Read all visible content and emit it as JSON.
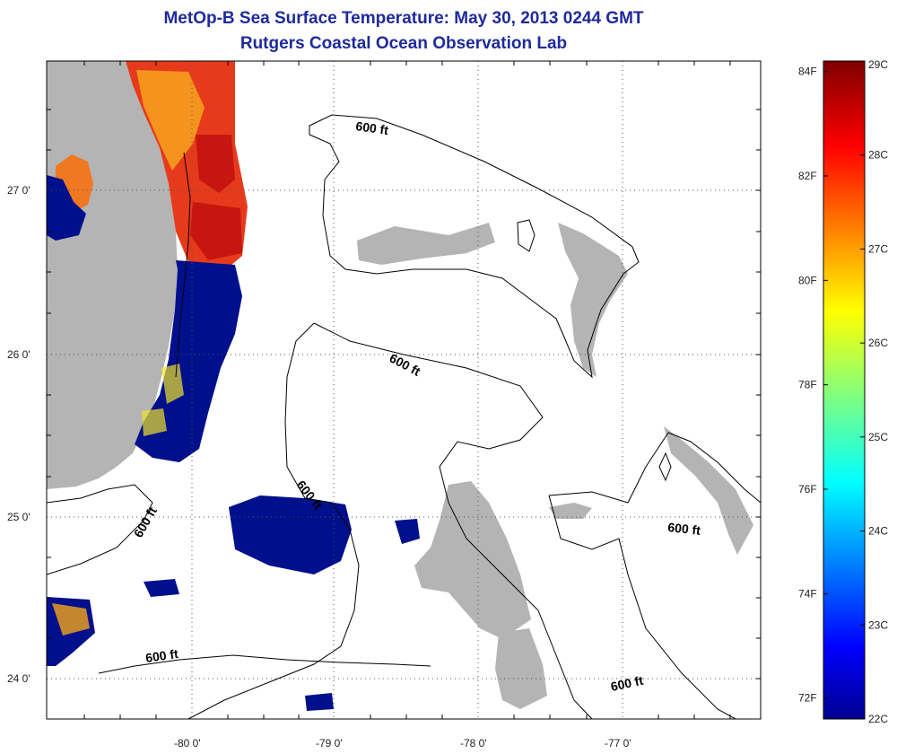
{
  "header": {
    "title": "MetOp-B Sea Surface Temperature:  May 30, 2013 0244 GMT",
    "subtitle": "Rutgers Coastal Ocean Observation Lab"
  },
  "map": {
    "type": "heatmap",
    "longitude_ticks": [
      "-80 0'",
      "-79 0'",
      "-78 0'",
      "-77 0'"
    ],
    "latitude_ticks": [
      "27 0'",
      "26 0'",
      "25 0'",
      "24 0'"
    ],
    "depth_contour_label": "600 ft",
    "land_color": "#b4b4b4",
    "no_data_color": "#ffffff"
  },
  "colorbar": {
    "celsius_labels": [
      "29C",
      "28C",
      "27C",
      "26C",
      "25C",
      "24C",
      "23C",
      "22C"
    ],
    "fahrenheit_labels": [
      "84F",
      "82F",
      "80F",
      "78F",
      "76F",
      "74F",
      "72F"
    ],
    "range_celsius": [
      22,
      29
    ],
    "colormap": "jet"
  }
}
